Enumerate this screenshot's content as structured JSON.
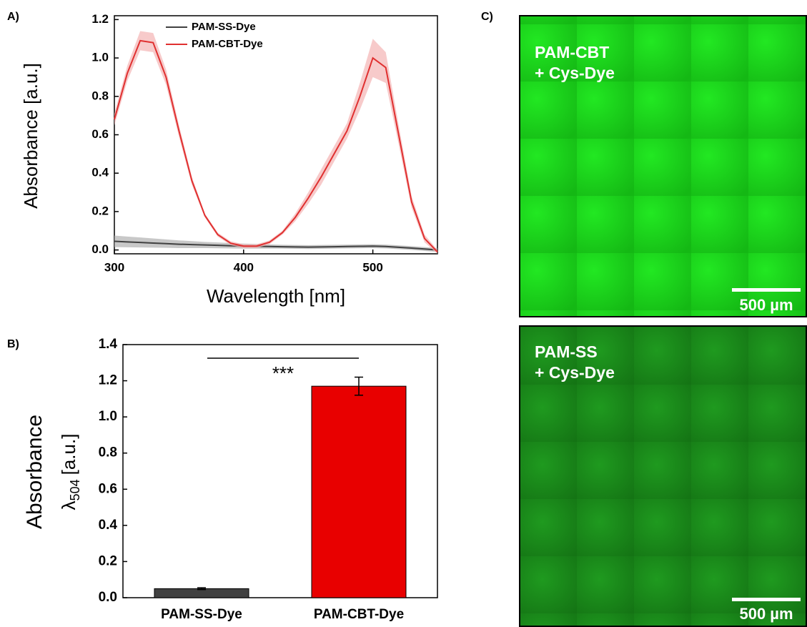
{
  "chart_data": [
    {
      "type": "line",
      "panel_label": "A)",
      "x_label": "Wavelength [nm]",
      "y_label": "Absorbance [a.u.]",
      "x": [
        300,
        310,
        320,
        330,
        340,
        350,
        360,
        370,
        380,
        390,
        400,
        410,
        420,
        430,
        440,
        450,
        460,
        470,
        480,
        490,
        500,
        510,
        520,
        530,
        540,
        550
      ],
      "series": [
        {
          "name": "PAM-SS-Dye",
          "color": "#404040",
          "band_color": "#b0b0b0",
          "values": [
            0.045,
            0.042,
            0.039,
            0.036,
            0.033,
            0.03,
            0.028,
            0.026,
            0.024,
            0.022,
            0.02,
            0.019,
            0.018,
            0.017,
            0.016,
            0.015,
            0.016,
            0.017,
            0.018,
            0.019,
            0.02,
            0.018,
            0.014,
            0.01,
            0.005,
            0.0
          ],
          "errors": [
            0.03,
            0.028,
            0.026,
            0.024,
            0.022,
            0.02,
            0.018,
            0.016,
            0.015,
            0.014,
            0.013,
            0.012,
            0.011,
            0.01,
            0.01,
            0.01,
            0.01,
            0.01,
            0.01,
            0.01,
            0.01,
            0.01,
            0.01,
            0.01,
            0.01,
            0.01
          ]
        },
        {
          "name": "PAM-CBT-Dye",
          "color": "#e03030",
          "band_color": "#f4b4b4",
          "values": [
            0.68,
            0.92,
            1.09,
            1.08,
            0.9,
            0.62,
            0.36,
            0.18,
            0.08,
            0.035,
            0.02,
            0.02,
            0.04,
            0.09,
            0.17,
            0.27,
            0.38,
            0.5,
            0.62,
            0.8,
            1.0,
            0.95,
            0.6,
            0.25,
            0.06,
            -0.01
          ],
          "errors": [
            0.03,
            0.04,
            0.05,
            0.05,
            0.04,
            0.03,
            0.02,
            0.01,
            0.01,
            0.01,
            0.01,
            0.01,
            0.01,
            0.01,
            0.02,
            0.03,
            0.04,
            0.04,
            0.04,
            0.07,
            0.1,
            0.08,
            0.05,
            0.03,
            0.02,
            0.01
          ]
        }
      ],
      "xlim": [
        300,
        550
      ],
      "xticks": [
        300,
        400,
        500
      ],
      "ylim": [
        -0.02,
        1.22
      ],
      "yticks": [
        {
          "value": 0,
          "label": "0.0"
        },
        0.2,
        0.4,
        0.6,
        0.8,
        {
          "value": 1,
          "label": "1.0"
        },
        1.2
      ],
      "legend": "upper center"
    },
    {
      "type": "bar",
      "panel_label": "B)",
      "y_label": "Absorbance",
      "y_label_symbol": "λ",
      "y_label_subscript": "504",
      "y_label_unit": "[a.u.]",
      "categories": [
        "PAM-SS-Dye",
        "PAM-CBT-Dye"
      ],
      "values": [
        0.05,
        1.17
      ],
      "errors": [
        0.005,
        0.05
      ],
      "colors": [
        "#404040",
        "#e80000"
      ],
      "ylim": [
        0,
        1.4
      ],
      "yticks": [
        {
          "value": 0,
          "label": "0.0"
        },
        0.2,
        0.4,
        0.6,
        0.8,
        {
          "value": 1,
          "label": "1.0"
        },
        1.2,
        1.4
      ],
      "significance": "***"
    }
  ],
  "panel_c": {
    "panel_label": "C)",
    "images": [
      {
        "label_lines": [
          "PAM-CBT",
          "+ Cys-Dye"
        ],
        "scale_bar": "500 µm"
      },
      {
        "label_lines": [
          "PAM-SS",
          "+ Cys-Dye"
        ],
        "scale_bar": "500 µm"
      }
    ]
  }
}
